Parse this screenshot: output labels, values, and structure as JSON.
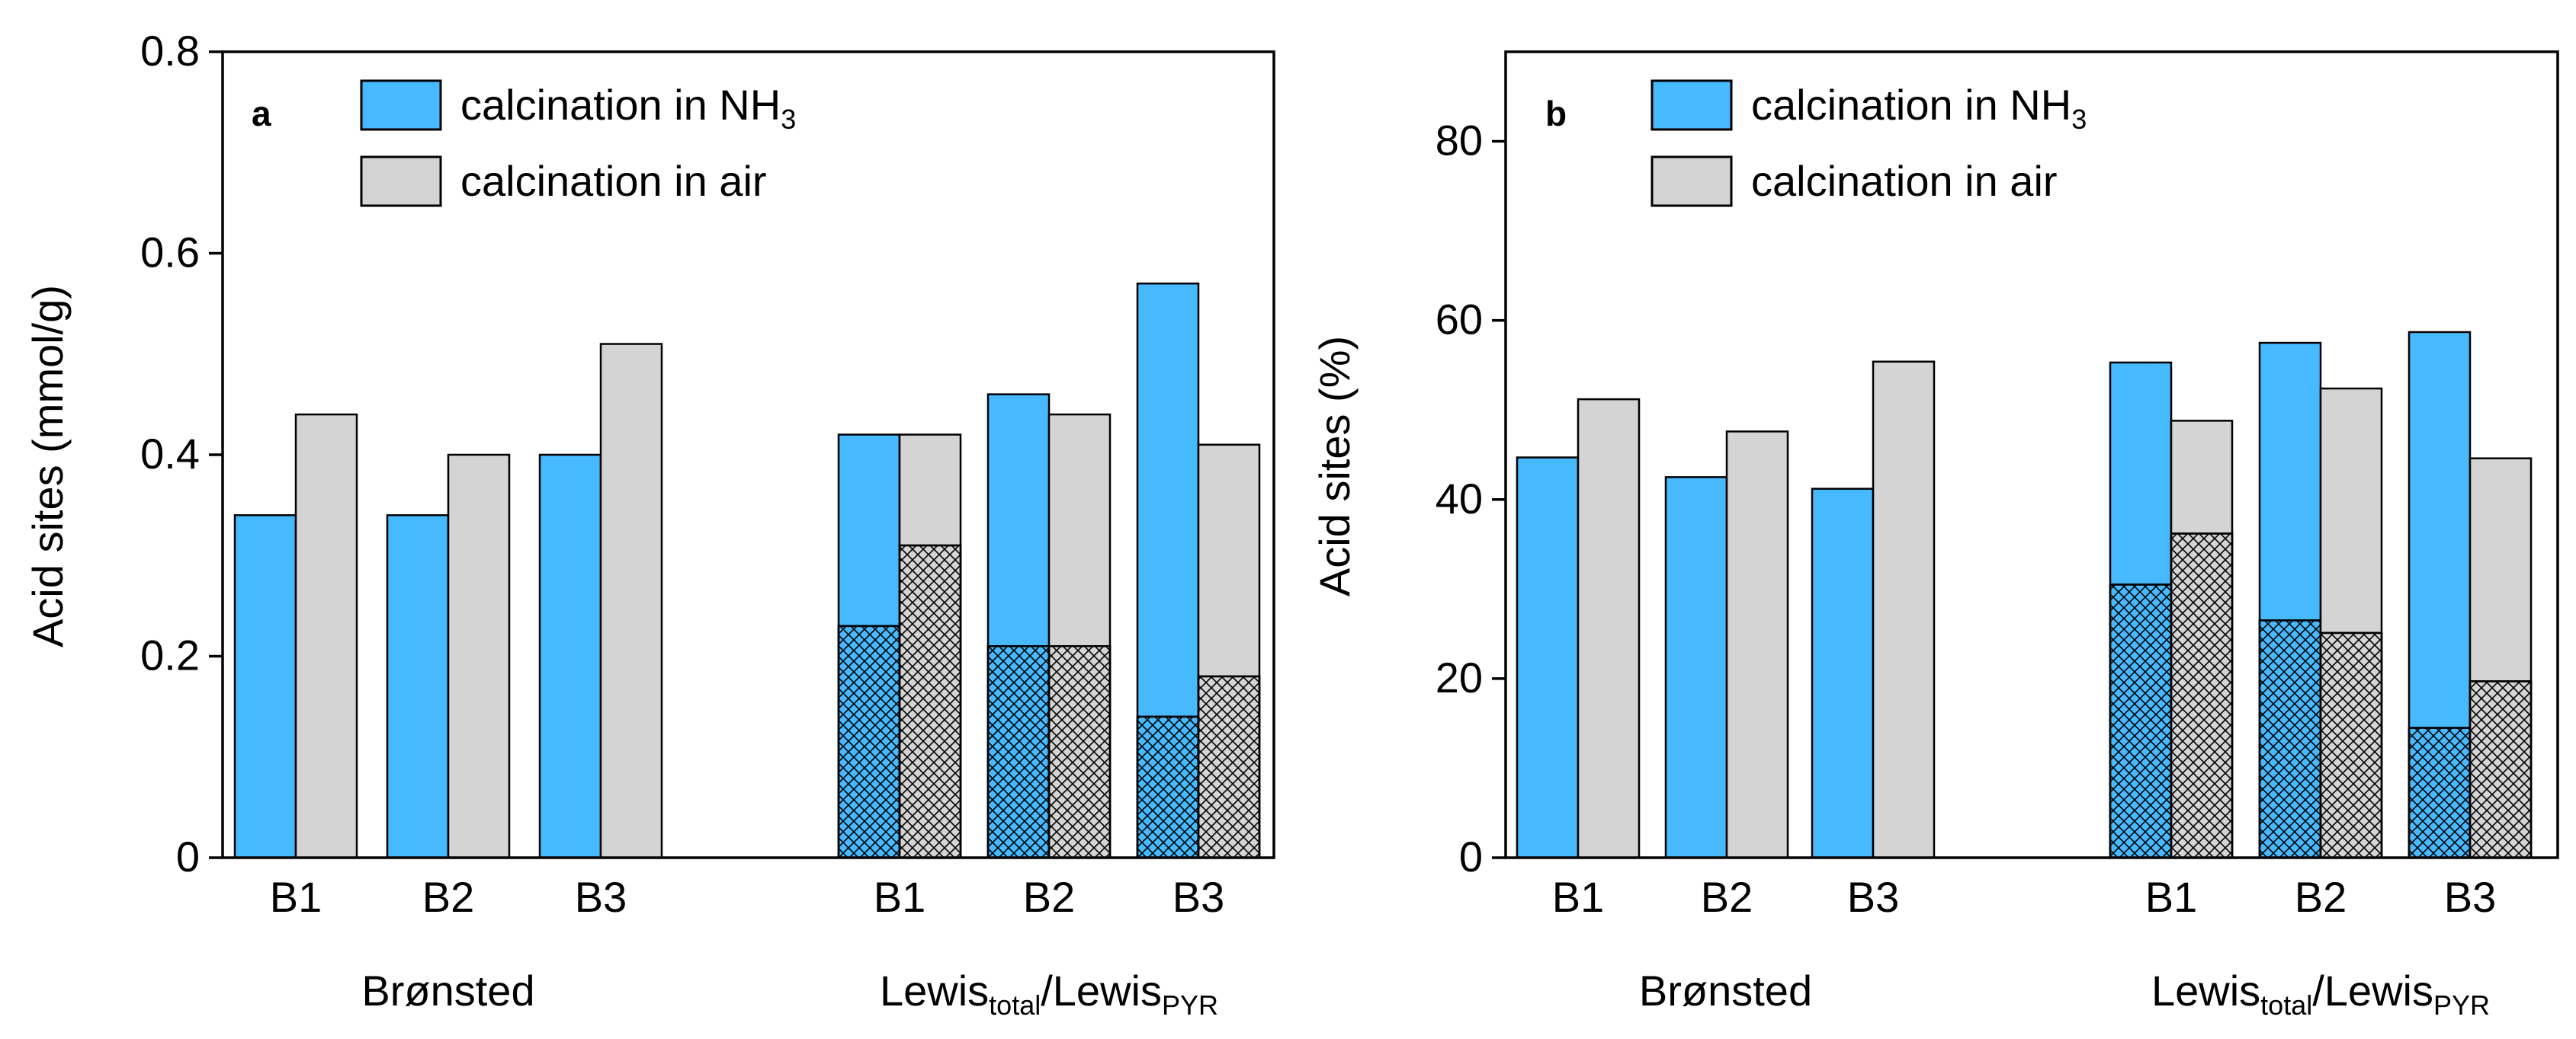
{
  "colors": {
    "nh3": "#47b9ff",
    "air": "#d4d4d4",
    "stroke": "#000000",
    "hatch": "#000000"
  },
  "chart_data": [
    {
      "type": "bar",
      "panel_label": "a",
      "ylabel": "Acid sites (mmol/g)",
      "ylim": [
        0,
        0.8
      ],
      "yticks": [
        0,
        0.2,
        0.4,
        0.6,
        0.8
      ],
      "ytick_labels": [
        "0",
        "0.2",
        "0.4",
        "0.6",
        "0.8"
      ],
      "legend": {
        "position": "top-left",
        "entries": [
          {
            "key": "nh3",
            "text": "calcination in NH",
            "sub": "3"
          },
          {
            "key": "air",
            "text": "calcination in air",
            "sub": ""
          }
        ]
      },
      "groups": [
        {
          "name": "Brønsted",
          "label_parts": [
            {
              "t": "Brønsted",
              "sub": false
            }
          ],
          "categories": [
            "B1",
            "B2",
            "B3"
          ],
          "series": [
            {
              "key": "nh3",
              "values": [
                0.34,
                0.34,
                0.4
              ]
            },
            {
              "key": "air",
              "values": [
                0.44,
                0.4,
                0.51
              ]
            }
          ]
        },
        {
          "name": "Lewis_total/Lewis_PYR",
          "label_parts": [
            {
              "t": "Lewis",
              "sub": false
            },
            {
              "t": "total",
              "sub": true
            },
            {
              "t": "/Lewis",
              "sub": false
            },
            {
              "t": "PYR",
              "sub": true
            }
          ],
          "categories": [
            "B1",
            "B2",
            "B3"
          ],
          "series": [
            {
              "key": "nh3",
              "values": [
                0.42,
                0.46,
                0.57
              ],
              "hatched_values": [
                0.23,
                0.21,
                0.14
              ]
            },
            {
              "key": "air",
              "values": [
                0.42,
                0.44,
                0.41
              ],
              "hatched_values": [
                0.31,
                0.21,
                0.18
              ]
            }
          ]
        }
      ]
    },
    {
      "type": "bar",
      "panel_label": "b",
      "ylabel": "Acid sites (%)",
      "ylim": [
        0,
        90
      ],
      "yticks": [
        0,
        20,
        40,
        60,
        80
      ],
      "ytick_labels": [
        "0",
        "20",
        "40",
        "60",
        "80"
      ],
      "legend": {
        "position": "top-left",
        "entries": [
          {
            "key": "nh3",
            "text": "calcination in NH",
            "sub": "3"
          },
          {
            "key": "air",
            "text": "calcination in air",
            "sub": ""
          }
        ]
      },
      "groups": [
        {
          "name": "Brønsted",
          "label_parts": [
            {
              "t": "Brønsted",
              "sub": false
            }
          ],
          "categories": [
            "B1",
            "B2",
            "B3"
          ],
          "series": [
            {
              "key": "nh3",
              "values": [
                44.7,
                42.5,
                41.2
              ]
            },
            {
              "key": "air",
              "values": [
                51.2,
                47.6,
                55.4
              ]
            }
          ]
        },
        {
          "name": "Lewis_total/Lewis_PYR",
          "label_parts": [
            {
              "t": "Lewis",
              "sub": false
            },
            {
              "t": "total",
              "sub": true
            },
            {
              "t": "/Lewis",
              "sub": false
            },
            {
              "t": "PYR",
              "sub": true
            }
          ],
          "categories": [
            "B1",
            "B2",
            "B3"
          ],
          "series": [
            {
              "key": "nh3",
              "values": [
                55.3,
                57.5,
                58.7
              ],
              "hatched_values": [
                30.5,
                26.5,
                14.5
              ]
            },
            {
              "key": "air",
              "values": [
                48.8,
                52.4,
                44.6
              ],
              "hatched_values": [
                36.2,
                25.1,
                19.7
              ]
            }
          ]
        }
      ]
    }
  ]
}
